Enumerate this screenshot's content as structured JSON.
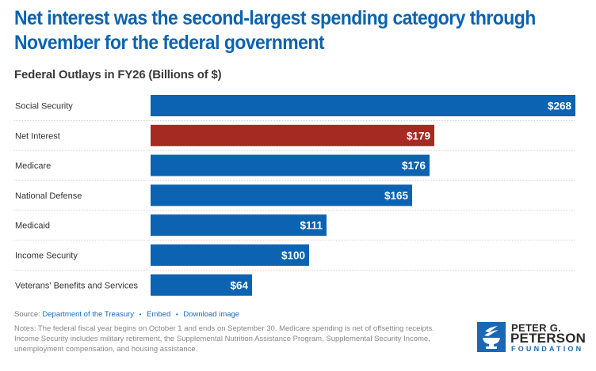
{
  "header": {
    "title": "Net interest was the second-largest spending category through November for the federal government",
    "subtitle": "Federal Outlays in FY26 (Billions of $)"
  },
  "chart_data": {
    "type": "bar",
    "orientation": "horizontal",
    "title": "Net interest was the second-largest spending category through November for the federal government",
    "subtitle": "Federal Outlays in FY26 (Billions of $)",
    "xlabel": "",
    "ylabel": "",
    "categories": [
      "Social Security",
      "Net Interest",
      "Medicare",
      "National Defense",
      "Medicaid",
      "Income Security",
      "Veterans' Benefits and Services"
    ],
    "values": [
      268,
      179,
      176,
      165,
      111,
      100,
      64
    ],
    "data_labels": [
      "$268",
      "$179",
      "$176",
      "$165",
      "$111",
      "$100",
      "$64"
    ],
    "xlim": [
      0,
      268
    ],
    "highlight_index": 1,
    "colors": {
      "default": "#0b63b1",
      "highlight": "#a52a22"
    },
    "grid": false,
    "legend": "none"
  },
  "footer": {
    "source_label": "Source:",
    "source_link": "Department of the Treasury",
    "embed_link": "Embed",
    "download_link": "Download image",
    "separator": "•",
    "notes": "Notes: The federal fiscal year begins on October 1 and ends on September 30. Medicare spending is net of offsetting receipts. Income Security includes military retirement, the Supplemental Nutrition Assistance Program, Supplemental Security Income, unemployment compensation, and housing assistance."
  },
  "logo": {
    "line1": "PETER G.",
    "line2": "PETERSON",
    "line3": "FOUNDATION",
    "icon": "torch-icon"
  }
}
